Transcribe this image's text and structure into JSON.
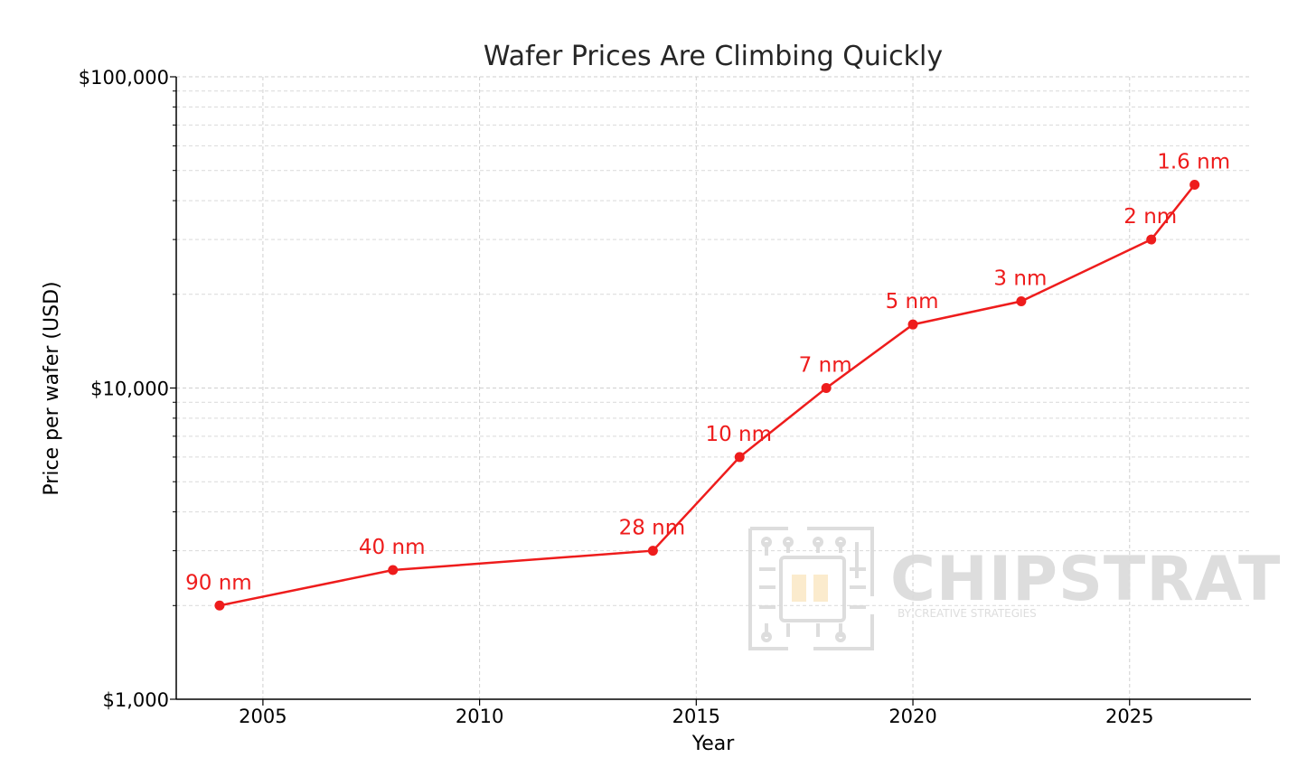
{
  "chart_data": {
    "type": "line",
    "title": "Wafer Prices Are Climbing Quickly",
    "xlabel": "Year",
    "ylabel": "Price per wafer (USD)",
    "xlim": [
      2003,
      2027.8
    ],
    "ylim": [
      1000,
      100000
    ],
    "yscale": "log",
    "grid": true,
    "x_ticks": [
      2005,
      2010,
      2015,
      2020,
      2025
    ],
    "y_ticks": [
      {
        "value": 1000,
        "label": "$1,000"
      },
      {
        "value": 10000,
        "label": "$10,000"
      },
      {
        "value": 100000,
        "label": "$100,000"
      }
    ],
    "series": [
      {
        "color": "#ee1c1c",
        "points": [
          {
            "x": 2004,
            "y": 2000,
            "label": "90 nm"
          },
          {
            "x": 2008,
            "y": 2600,
            "label": "40 nm"
          },
          {
            "x": 2014,
            "y": 3000,
            "label": "28 nm"
          },
          {
            "x": 2016,
            "y": 6000,
            "label": "10 nm"
          },
          {
            "x": 2018,
            "y": 10000,
            "label": "7 nm"
          },
          {
            "x": 2020,
            "y": 16000,
            "label": "5 nm"
          },
          {
            "x": 2022.5,
            "y": 19000,
            "label": "3 nm"
          },
          {
            "x": 2025.5,
            "y": 30000,
            "label": "2 nm"
          },
          {
            "x": 2026.5,
            "y": 45000,
            "label": "1.6 nm"
          }
        ]
      }
    ]
  },
  "watermark": {
    "brand": "CHIPSTRAT",
    "tagline": "BY CREATIVE STRATEGIES",
    "icon": "chip-circuit-icon"
  }
}
